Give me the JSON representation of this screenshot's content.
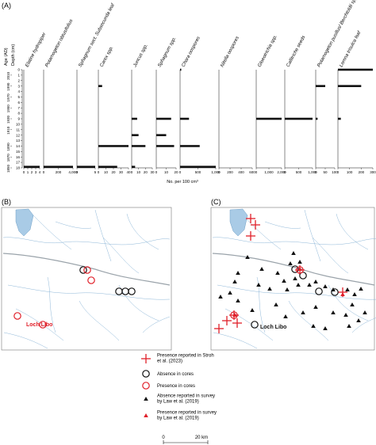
{
  "panel_labels": [
    "(A)",
    "(B)",
    "(C)"
  ],
  "chart_data": {
    "type": "bar",
    "orientation": "horizontal",
    "y_axis": {
      "age_label": "Age (AD)",
      "depth_label": "Depth (cm)",
      "age_ticks": [
        "2010",
        "1990",
        "1970",
        "1950",
        "1930",
        "1910",
        "1890",
        "1870",
        "1850"
      ],
      "depth_ticks": [
        "0",
        "1",
        "2",
        "3",
        "4",
        "5",
        "6",
        "7",
        "8",
        "9",
        "10",
        "11",
        "12",
        "13",
        "14",
        "15",
        "16",
        "17",
        "18"
      ],
      "depth_range": [
        0,
        18
      ]
    },
    "xlabel": "No. per 100 cm³",
    "taxa": [
      {
        "name": "Elatine hydropiper",
        "ticks": [
          "0",
          "1",
          "2",
          "3",
          "4"
        ],
        "max": 4,
        "depth_values": [
          0,
          0,
          0,
          0,
          0,
          0,
          0,
          0,
          0,
          0,
          0,
          0,
          0,
          0,
          0,
          0,
          0,
          0,
          4
        ]
      },
      {
        "name": "Potamogeton obtusifolius",
        "ticks": [
          "0",
          "200",
          "4,000"
        ],
        "max": 4000,
        "depth_values": [
          0,
          0,
          0,
          0,
          0,
          0,
          0,
          0,
          0,
          0,
          0,
          0,
          0,
          0,
          0,
          0,
          0,
          0,
          4000
        ]
      },
      {
        "name": "Sphagnum sect. Subsecunda leaf",
        "ticks": [
          "0",
          "5"
        ],
        "max": 5,
        "depth_values": [
          0,
          0,
          0,
          0,
          0,
          0,
          0,
          0,
          0,
          0,
          0,
          0,
          0,
          0,
          0,
          0,
          0,
          0,
          5
        ]
      },
      {
        "name": "Carex spp.",
        "ticks": [
          "0",
          "10",
          "20",
          "30",
          "40"
        ],
        "max": 40,
        "depth_values": [
          0,
          0,
          0,
          5,
          0,
          0,
          0,
          0,
          0,
          0,
          0,
          0,
          0,
          0,
          40,
          0,
          0,
          0,
          25
        ]
      },
      {
        "name": "Juncus spp.",
        "ticks": [
          "0",
          "10",
          "20",
          "30"
        ],
        "max": 30,
        "depth_values": [
          0,
          0,
          0,
          0,
          0,
          0,
          0,
          0,
          0,
          8,
          0,
          0,
          10,
          0,
          20,
          0,
          0,
          0,
          5
        ]
      },
      {
        "name": "Sphagnum spp.",
        "ticks": [
          "0",
          "10",
          "20"
        ],
        "max": 20,
        "depth_values": [
          0,
          0,
          0,
          0,
          0,
          0,
          0,
          0,
          0,
          15,
          0,
          0,
          10,
          0,
          18,
          0,
          0,
          0,
          0
        ]
      },
      {
        "name": "Chara oospores",
        "ticks": [
          "0",
          "500",
          "1,000"
        ],
        "max": 1000,
        "depth_values": [
          25,
          0,
          0,
          0,
          0,
          0,
          0,
          0,
          0,
          250,
          0,
          0,
          0,
          0,
          550,
          0,
          0,
          0,
          1000
        ]
      },
      {
        "name": "Nitella oospores",
        "ticks": [
          "0",
          "200",
          "400",
          "600"
        ],
        "max": 600,
        "depth_values": [
          0,
          0,
          0,
          0,
          0,
          0,
          0,
          0,
          0,
          0,
          0,
          0,
          0,
          0,
          0,
          0,
          0,
          0,
          0
        ]
      },
      {
        "name": "Gloeotrichia spp.",
        "ticks": [
          "0",
          "1,000",
          "2,000"
        ],
        "max": 2000,
        "depth_values": [
          0,
          0,
          0,
          0,
          0,
          0,
          0,
          0,
          0,
          2000,
          0,
          0,
          0,
          0,
          0,
          0,
          0,
          0,
          0
        ]
      },
      {
        "name": "Callitriche seeds",
        "ticks": [
          "0",
          "500",
          "1,000"
        ],
        "max": 1000,
        "depth_values": [
          0,
          0,
          0,
          0,
          0,
          0,
          0,
          0,
          0,
          1000,
          0,
          0,
          0,
          0,
          0,
          0,
          0,
          0,
          0
        ]
      },
      {
        "name": "Potamogeton pusillus/ Berchtoldii spp.",
        "ticks": [
          "0",
          "50",
          "100"
        ],
        "max": 100,
        "depth_values": [
          0,
          0,
          0,
          50,
          0,
          0,
          0,
          0,
          0,
          10,
          0,
          0,
          0,
          0,
          0,
          0,
          0,
          0,
          0
        ]
      },
      {
        "name": "Lemna trisulca leaf",
        "ticks": [
          "0",
          "100",
          "200",
          "300"
        ],
        "max": 300,
        "depth_values": [
          300,
          0,
          0,
          200,
          0,
          0,
          0,
          0,
          0,
          25,
          0,
          0,
          0,
          0,
          0,
          0,
          0,
          0,
          0
        ]
      }
    ]
  },
  "maps": {
    "site_label": "Loch Libo",
    "scale_ticks": [
      "0",
      "20 km"
    ]
  },
  "legend": [
    {
      "label": "Presence reported in Stroh et al. (2023)",
      "symbol": "red-cross"
    },
    {
      "label": "Absence in cores",
      "symbol": "black-circle"
    },
    {
      "label": "Presence in cores",
      "symbol": "red-circle"
    },
    {
      "label": "Absence reported in survey by Law et al. (2019)",
      "symbol": "black-triangle"
    },
    {
      "label": "Presence reported in survey by Law et al. (2019)",
      "symbol": "red-triangle"
    }
  ],
  "colors": {
    "water": "#a9cbe6",
    "river": "#8db7d8",
    "red": "#e0202a",
    "black": "#111111",
    "panel_border": "#777777"
  }
}
